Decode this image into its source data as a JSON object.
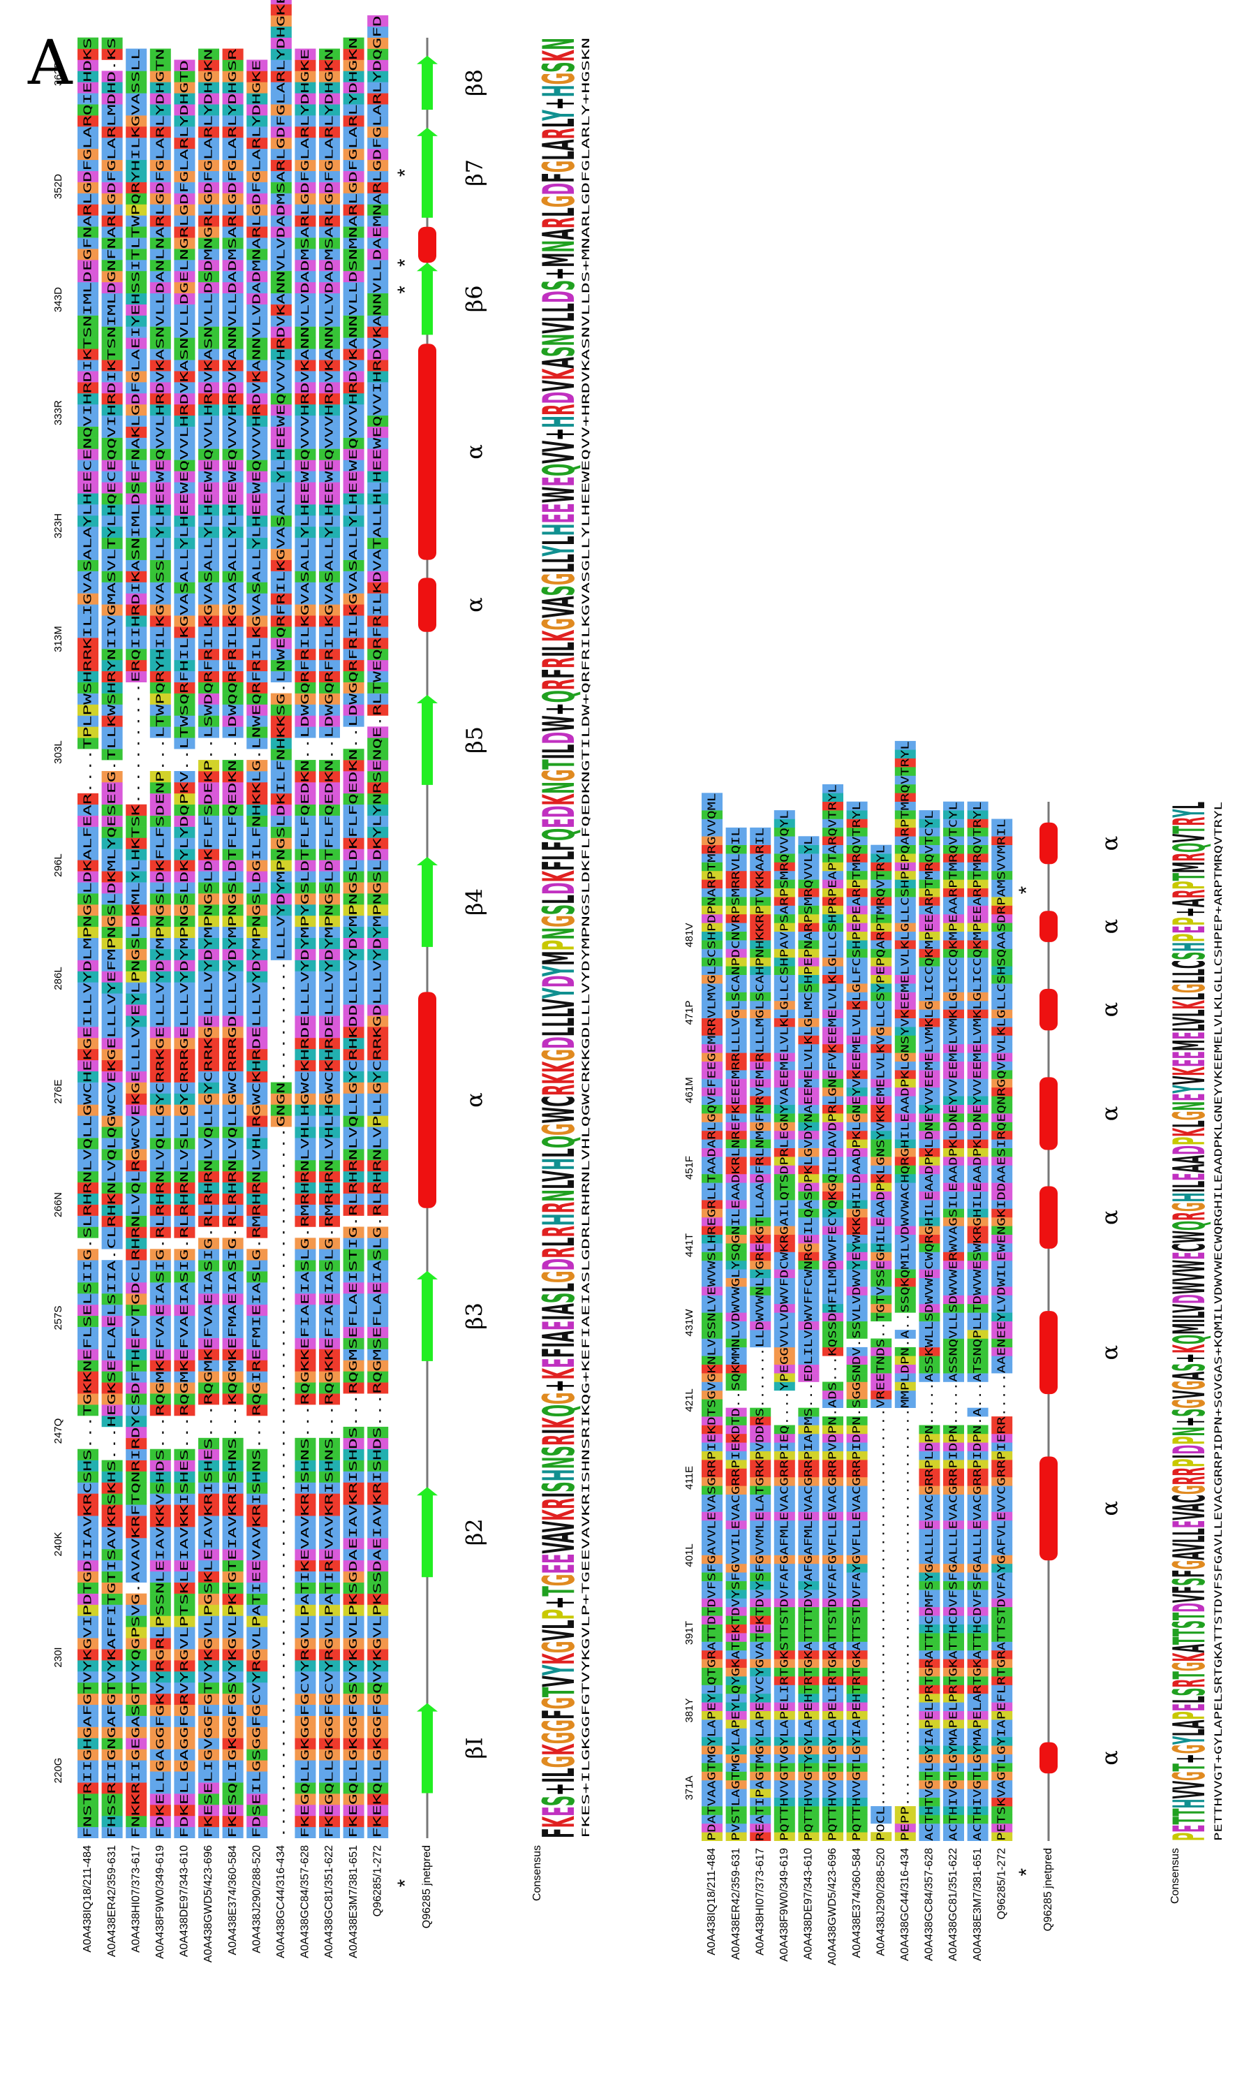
{
  "panel_label": "A",
  "blocks": [
    {
      "positions": [
        "220G",
        "230I",
        "240K",
        "247Q",
        "257S",
        "266N",
        "276E",
        "286L",
        "296L",
        "303L",
        "313M",
        "323H",
        "333R",
        "343D",
        "352D",
        "362D"
      ],
      "rows": [
        {
          "name": "A0A438IQ18/211-484",
          "sequence": "FNSTRIIGHGAFGTVYKGVIPDTGDIIAVKRCSHS...TGKKNEFLSELSIIG.SLRHRNLVQLLGWCHEKGEILLVYDLMPNGSLDKALFEAR....TPLPWSHRRKILIGVASALAYLHEECENQVIHRDIKTSNIMLDEGFNARLGDFGLARQIEHDKS"
        },
        {
          "name": "A0A438ER42/359-631",
          "sequence": "FHSSRIIGNGAFGTVYKAFFITGTISAVKRSKHS...HEGKSEFLAELSIIA.CLRHKNLVQLQGWCVEKGELLLVYEFMPNGSLDKMLYQESEEG.TLLKWSHRYNIIVGMASVLTYLHQECEQQVIHRDIKTSNIMLDGNFNARLGDFGLARLMDHD.KS"
        },
        {
          "name": "A0A438HI07/373-617",
          "sequence": "FNKKRIIGEGASGTVYQGPSVG.AVAVKRFTQNRIRDYCSDFTHEFVTGDCLRHRNLVQLRGWCVEKGELLLVYEYLPNGSLDKMLYLHKTSK...........ERQIIHRDIKASNIMLDSEFNAKLGDFGLAEIYEHSSITLTWPQRYHILKGVASSLL"
        },
        {
          "name": "A0A438F9W0/349-619",
          "sequence": "FDKELLGAGGFGKVYRGRLPSSNLEIAVKKVSHDS...RQGMKEFVAEIASIG.RLRHRNLVQLLGYCRRKGELLLVYDYMPNGSLDKFLFSDENP...LTWPQRYHILKGVASSLLYLHEEWEQVVLHRDVKASNVLLDANLNARLGDFGLARLYDHGTN"
        },
        {
          "name": "A0A438DE97/343-610",
          "sequence": "FDKELLGAGGFGRVYRGVLPTSKLEIAVKKISHES...RQGMKEFVAEIASIG.RLRHRNLVSLLGYCRRRGELLLVYDYMPNGSLDKYLYDQPKV..LTWSQRFHILKGVASALLYLHEEWEQVVLHRDVKASNVLLDGELNGRLGDFGLARLYDHGTD"
        },
        {
          "name": "A0A438GWD5/423-696",
          "sequence": "FKESELIGVGGFGTVYKGVLPGSKLEIAVKRISHES...RQGMKEFVAEIASIG.RLRHRNLVQLLGYCRRKGELLLVYDYMPNGSLDKFLFSDEKP..LSWDQRFRILKGVASALLYLHEEWEQVVLHRDVKASNVLLDSDMNGRLGDFGLARLYDHGKN"
        },
        {
          "name": "A0A438E374/360-584",
          "sequence": "FKESQLIGKGGFGSVYKGVLPKTGTEIAVKRISHNS...KQGMKEFMAEIASIG.RLRHRNLVQLLGWCRRRGDLLLVYDYMPNGSLDTFLFQEDKN..LDWQQRFRILKGVASALLYLHEEWEQVVVHRDVKANNVLLDADMSARLGDFGLARLYDHGSR"
        },
        {
          "name": "A0A438J290/288-520",
          "sequence": "FDSEILGSGGFGCVYRGVLPATIEEVAVKRISHNS...RQGIREFMIEIASLG.RMRHRNLVHLRGWCKHRDELLLVYDYMPNGSLDGILFNHKKLG.LNWEQRFRILKGVASALLYLHEEWEQVVVHRDVKANNVLVDADMNARLGDFGLARLYDHGKE"
        },
        {
          "name": "A0A438GC44/316-434",
          "sequence": "................................................................GNGN...........LLLVYDYMPNGSLDKILFNHKKSG.LNWEQRFRILKGVASALLYLHEEWEQVVVHRDVKANNVLVDADMSARLGDFGLARLYDHGKE"
        },
        {
          "name": "A0A438GC84/357-628",
          "sequence": "FKEGQLLGKGGFGCVYRGVLPATIKEVAVKRISHNS...RQGKKEFIAEIASLG.RMRHRNLVHLHGWCKHRDELLLVYDYMPYGSLDTFLFQEDKN..LDWGQRFRILKGVASALLYLHEEWEQVVVHRDVKANNVLVDADMSARLGDFGLARLYDHGKE"
        },
        {
          "name": "A0A438GC81/351-622",
          "sequence": "FKEGQLLGKGGFGCVYRGVLPATIREVAVKRISHNS...RQGKKEFIAEIASLG.RMRHRNLVHLHGWCKHRDELLLVYDYMPNGSLDTFLFQEDKN..LDWGQRFRILKGVASALLYLHEEWEQVVVHRDVKANNVLVDADMSARLGDFGLARLYDHGKN"
        },
        {
          "name": "A0A438E3M7/381-651",
          "sequence": "FKEGQLLGKGGFGSVYKGVLPKSGDAEIAVKRISHDS...RQGMSEFLAEISTIG.RLRHRNLVQLLGYCRHKDDLLLVYDYMPNGSLDKFLFQEDKN..LDWGQRFRILKGVASALLYLHEEWEQVVVHRDVKANNVLLDSNMNARLGDFGLARLYDHGKN"
        },
        {
          "name": "Q96285/1-272",
          "sequence": "FKEKQLLGKGGFGQVYKGVLPKSSDAEIAVKRISHDS...RQGMSEFLAEIASLG.RLRHRNLVPLLGYCRRKGDLLLVYDYMPNGSLDKYLYNRSENQE.RLTWEQRFRILKDVATALLHLHEEWEQVVIHRDVKANNVLLDAEMNARLGDFGLARLYDQGFD"
        }
      ],
      "prediction_label": "Q96285 jnetpred",
      "structure_labels": [
        "βI",
        "β2",
        "β3",
        "α",
        "β4",
        "β5",
        "α",
        "α",
        "β6",
        "β7",
        "β8"
      ],
      "asterisks": [
        "*",
        "*",
        "*",
        "*"
      ],
      "consensus_label": "Consensus",
      "consensus": "FKES+ILGKGGFGTVYKGVLP+TGEEVAVKRISHNSRIKQG+KEFIAEIASLGDRLRHRNLVHLQGWCRKKGDLLLVYDYMPNGSLDKFLFQEDKNGTILDW+QRFRILKGVASGLLYLHEEWEQVV+HRDVKASNVLLDS+MNARLGDFGLARLY+HGSKN"
    },
    {
      "positions": [
        "371A",
        "381Y",
        "391T",
        "401L",
        "411E",
        "421L",
        "431W",
        "441T",
        "451F",
        "461M",
        "471P",
        "481V"
      ],
      "rows": [
        {
          "name": "A0A438IQ18/211-484",
          "sequence": "PDATVAAGTMGYLAPEYLQTGRATTDTDVFSFGAVVLEVASGRRPIEKDTSGVGKNLVSSNLVEWVWSLHREGRLLTAADARLGQVEFEEGEMRRVLMVGLSCSHPDPNARPTMRGVVQML"
        },
        {
          "name": "A0A438ER42/359-631",
          "sequence": "PVSTLAGTMGYLAPEYLQYGKATEKTDVYSFGVVILEVACGRRPIEKDTD..SQKMMNLVDWVWGLYSQGNILEAADKRLNREFKEEEMRRLLLVGLSCANPDCNVRPSMRRVLQIL"
        },
        {
          "name": "A0A438HI07/373-617",
          "sequence": "REATIPAGTMGYLAPEYVCYGVATEKTDVYSFGVVMLELATGRKPVDDRS.......LLDWVWNLYGREKGTLLAADFRLNMGFNRVEMERLLLMGLSCAHPNHKKRPTVKKAARIL"
        },
        {
          "name": "A0A438F9W0/349-619",
          "sequence": "PQTTHVVGTVGYLAPELIRTGKSTTSTDVFAFGAFMLEVACGRRPIEQ....YPEGGVVLVDWVFDCWKRGAILQTSDPRLEGNYVAEEMELVLKLGLLCSHPAVPSARPSMRQVVQYL"
        },
        {
          "name": "A0A438DE97/343-610",
          "sequence": "PQTTHVVGTYGYLAPEHTRTGKATTTTDVYAFGAFMLEVACGRRPIAPMS...EDLILVDWVFFCWNRGEILQASDPKLGVDYNAEEMELVLKLGLMCSHPEPNARPSMRQVVLYL"
        },
        {
          "name": "A0A438GWD5/423-696",
          "sequence": "PQTTHVVGTLGYLAPELIRTGKATTSTDVFAFGVFLLEVACGRRPVDPN.ADS...KQSSDHFILMDWVFECYQKGQILDAVDPRLGNEFVKEEMELVLKLGLLCSHPRPEAPTARQVTRYL"
        },
        {
          "name": "A0A438E374/360-584",
          "sequence": "PQTTHVVGTLGYIAPEHTRTGKATTSTDVFAYGVFLLEVACGRRPIDPN.SGGSNDV.SSVLVDWVYEYWKKGHILDAADPKLGNEYVKEEMELVLKLGLFCSHPEPEARPTMRQVTRYL"
        },
        {
          "name": "A0A438J290/288-520",
          "sequence": "POCL..............................................VREETNDS..TGTVSSEGHILEAADPKLGNSYVKKEMELVLKVGLLCSYPEPQARPTMRQVTRYL"
        },
        {
          "name": "A0A438GC44/316-434",
          "sequence": "PEPP..............................................MMPLDPN.A..SSQKQMILVDWVWACHQRGHILEAADPKLGNSYVKEEMELVLKLGLLCSHPEPQARPTMRQVTRYL"
        },
        {
          "name": "A0A438GC84/357-628",
          "sequence": "ACTHTVGTLGYIAPELPRTGRATTHCDMFSYGALLLEVACGRRPLDPN.....ASSKWLLSDWVWECWQRGHILEAADPKLDNEYVVEEMELVMKLGLICCQKMPEEARPTMRQVTCYL"
        },
        {
          "name": "A0A438GC81/351-622",
          "sequence": "ACTHIVGTLGYMAPELPRTGKATTHCDVFSFGALLLEVACGRRPIDPN.....ASSNQVLLSDWVWERWVAGSILEAADPKLDNEYVVEEMELVMKLGLICCQKMPEAARPTMRQVTCYL"
        },
        {
          "name": "A0A438E3M7/381-651",
          "sequence": "ACTHIVGTLGYMAPELARTGKATTHCDVFSFGALLLEVACGRRPIDPN.A...ATSNQPLLTDWVWESWKRGHILEAADPKLDNEYVVEEMELVMKLGLICCQKMPEEARPTMRQVTRYL"
        },
        {
          "name": "Q96285/1-272",
          "sequence": "PETSKVAGTLGYIAPEFLRTGRATTSTDVFAYGAFVLEVVCGRRPIERR.....AAENEEYLVDWILEWENGKIDDAAESIRQEQNRGQVEVLKLGLLCSHSQAASDRPAMSVVMRIL"
        }
      ],
      "prediction_label": "Q96285 jnetpred",
      "structure_labels": [
        "α",
        "α",
        "α",
        "α",
        "α",
        "α",
        "α",
        "α"
      ],
      "asterisks": [
        "*",
        "*"
      ],
      "consensus_label": "Consensus",
      "consensus": "PETTHVVGT+GYLAPELSRTGKATTSTDVFSFGAVLLEVACGRRPIDPN+SGVGAS+KQMILVDWVWECWQRGHILEAADPKLGNEYVKEEMELVLKLGLLCSHPEP+ARPTMRQVTRYL"
    }
  ]
}
